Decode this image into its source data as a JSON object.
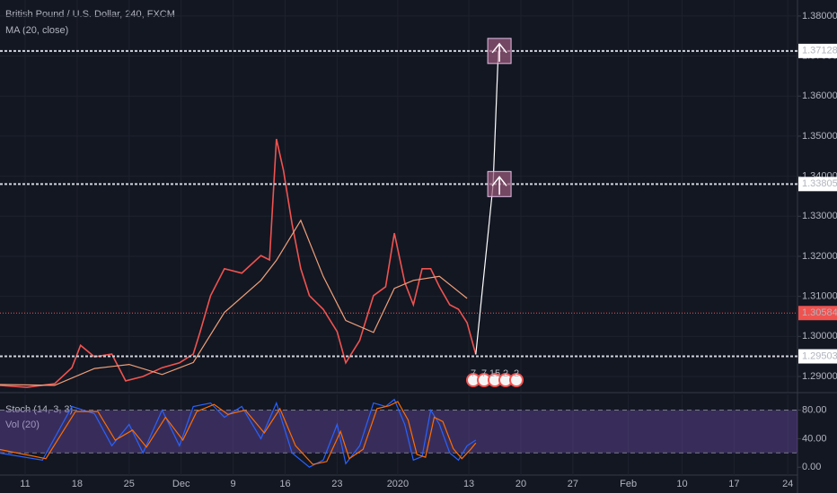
{
  "chart_data": [
    {
      "type": "line",
      "title": "British Pound / U.S. Dollar, 240, FXCM",
      "xlim": [
        -14.5,
        445.6
      ],
      "xticks": [
        {
          "value": 0,
          "label": "11"
        },
        {
          "value": 30,
          "label": "18"
        },
        {
          "value": 60,
          "label": "25"
        },
        {
          "value": 90,
          "label": "Dec"
        },
        {
          "value": 120,
          "label": "9"
        },
        {
          "value": 150,
          "label": "16"
        },
        {
          "value": 180,
          "label": "23"
        },
        {
          "value": 215,
          "label": "2020"
        },
        {
          "value": 256,
          "label": "13"
        },
        {
          "value": 286,
          "label": "20"
        },
        {
          "value": 316,
          "label": "27"
        },
        {
          "value": 348,
          "label": "Feb"
        },
        {
          "value": 379,
          "label": "10"
        },
        {
          "value": 409,
          "label": "17"
        },
        {
          "value": 440,
          "label": "24"
        }
      ],
      "ylim": [
        1.2862,
        1.384
      ],
      "yticks": [
        {
          "value": 1.29,
          "label": "1.29000"
        },
        {
          "value": 1.3,
          "label": "1.30000"
        },
        {
          "value": 1.31,
          "label": "1.31000"
        },
        {
          "value": 1.32,
          "label": "1.32000"
        },
        {
          "value": 1.33,
          "label": "1.33000"
        },
        {
          "value": 1.34,
          "label": "1.34000"
        },
        {
          "value": 1.35,
          "label": "1.35000"
        },
        {
          "value": 1.36,
          "label": "1.36000"
        },
        {
          "value": 1.37,
          "label": "1.37000"
        },
        {
          "value": 1.38,
          "label": "1.38000"
        }
      ],
      "grid": true,
      "levels": [
        {
          "value": 1.37128,
          "label": "1.37128"
        },
        {
          "value": 1.33805,
          "label": "1.33805"
        },
        {
          "value": 1.29503,
          "label": "1.29503"
        }
      ],
      "current_price": {
        "value": 1.30584,
        "label": "1.30584",
        "color": "#ef5350"
      },
      "events": [
        "7",
        "7",
        "15",
        "2",
        "2"
      ],
      "series": [
        {
          "color": "#ef5350",
          "x": [
            -15,
            1,
            17,
            27,
            32,
            40,
            50,
            58,
            68,
            79,
            89,
            97,
            101,
            107,
            115,
            125,
            136,
            141,
            145,
            149,
            154,
            159,
            164,
            172,
            180,
            185,
            193,
            201,
            208,
            213,
            219,
            224,
            229,
            234,
            239,
            245,
            250,
            255,
            260
          ],
          "values": [
            1.2878,
            1.2873,
            1.2882,
            1.2922,
            1.2978,
            1.2949,
            1.2956,
            1.2889,
            1.29,
            1.2922,
            1.2934,
            1.2956,
            1.3012,
            1.3102,
            1.3169,
            1.3158,
            1.3202,
            1.3191,
            1.3493,
            1.3415,
            1.3281,
            1.3169,
            1.3102,
            1.3068,
            1.3012,
            1.2934,
            1.299,
            1.3102,
            1.3124,
            1.3258,
            1.3135,
            1.3079,
            1.3169,
            1.3169,
            1.3124,
            1.3079,
            1.3068,
            1.3034,
            1.2955
          ]
        },
        {
          "name": "MA (20, close)",
          "color": "#f0a07a",
          "x": [
            -15,
            17,
            40,
            60,
            79,
            97,
            115,
            136,
            145,
            159,
            172,
            185,
            201,
            213,
            224,
            239,
            255
          ],
          "values": [
            1.288,
            1.2878,
            1.292,
            1.293,
            1.2905,
            1.2935,
            1.306,
            1.314,
            1.319,
            1.329,
            1.315,
            1.304,
            1.301,
            1.312,
            1.314,
            1.315,
            1.3095
          ]
        },
        {
          "color": "#ffffff",
          "x": [
            260,
            270,
            273
          ],
          "values": [
            1.2955,
            1.33805,
            1.37128
          ]
        }
      ]
    },
    {
      "type": "line",
      "title": "Stoch (14, 3, 3)",
      "subtitle": "Vol (20)",
      "ylim": [
        -11,
        102
      ],
      "yticks": [
        {
          "value": 0,
          "label": "0.00"
        },
        {
          "value": 40,
          "label": "40.00"
        },
        {
          "value": 80,
          "label": "80.00"
        }
      ],
      "band": [
        20,
        80
      ],
      "series": [
        {
          "color": "#2962ff",
          "x": [
            -15,
            10,
            27,
            40,
            50,
            60,
            68,
            79,
            89,
            97,
            107,
            115,
            125,
            136,
            145,
            154,
            164,
            172,
            180,
            185,
            193,
            201,
            208,
            213,
            219,
            224,
            229,
            234,
            239,
            245,
            250,
            255,
            260
          ],
          "values": [
            20,
            10,
            85,
            75,
            30,
            60,
            20,
            80,
            30,
            85,
            90,
            70,
            85,
            40,
            90,
            20,
            0,
            10,
            60,
            5,
            30,
            90,
            85,
            95,
            60,
            10,
            15,
            80,
            60,
            20,
            10,
            30,
            38
          ]
        },
        {
          "color": "#ff6d00",
          "x": [
            -15,
            12,
            29,
            42,
            52,
            62,
            70,
            81,
            91,
            99,
            109,
            117,
            127,
            138,
            147,
            156,
            166,
            174,
            182,
            187,
            195,
            203,
            210,
            215,
            221,
            226,
            231,
            236,
            241,
            247,
            252,
            257,
            260
          ],
          "values": [
            25,
            12,
            78,
            78,
            38,
            52,
            28,
            70,
            38,
            78,
            88,
            74,
            80,
            48,
            82,
            30,
            4,
            8,
            50,
            12,
            25,
            82,
            86,
            92,
            66,
            18,
            14,
            70,
            64,
            26,
            12,
            25,
            34
          ]
        }
      ]
    }
  ]
}
